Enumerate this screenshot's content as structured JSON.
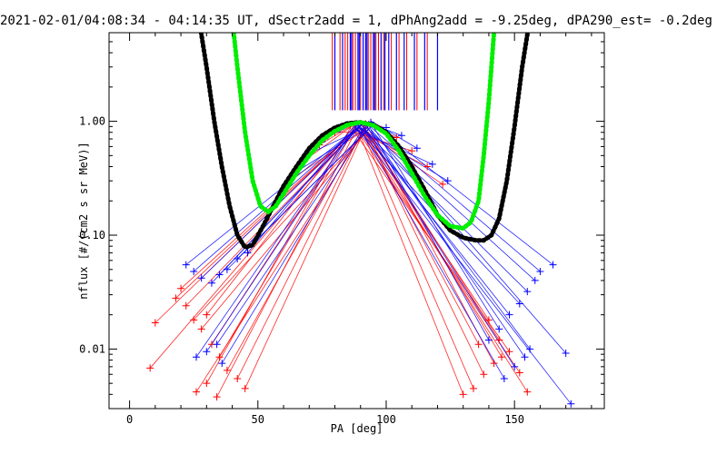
{
  "chart_data": {
    "type": "scatter",
    "title": "2021-02-01/04:08:34 - 04:14:35 UT, dSectr2add = 1, dPhAng2add = -9.25deg, dPA290_est=  -0.2deg",
    "xlabel": "PA [deg]",
    "ylabel": "nflux [#/(cm2 s sr MeV)]",
    "xlim": [
      -8,
      185
    ],
    "ylim": [
      0.003,
      6.0
    ],
    "yscale": "log",
    "xticks": [
      0,
      50,
      100,
      150
    ],
    "xtick_labels": [
      "0",
      "50",
      "100",
      "150"
    ],
    "yticks": [
      0.01,
      0.1,
      1.0
    ],
    "ytick_labels": [
      "0.01",
      "0.10",
      "1.00"
    ],
    "colors": {
      "red": "#ff0000",
      "blue": "#0000ff",
      "black": "#000000",
      "green": "#00ee00"
    },
    "series": [
      {
        "color": "#000000",
        "style": "thick-dotted-curve",
        "x": [
          27,
          30,
          33,
          36,
          39,
          42,
          45,
          48,
          52,
          56,
          60,
          65,
          70,
          75,
          80,
          85,
          90,
          95,
          100,
          105,
          110,
          115,
          120,
          125,
          130,
          135,
          138,
          141,
          144,
          147,
          150,
          153,
          156
        ],
        "y": [
          8.0,
          3.0,
          1.0,
          0.4,
          0.18,
          0.1,
          0.078,
          0.082,
          0.12,
          0.18,
          0.27,
          0.4,
          0.58,
          0.75,
          0.88,
          0.96,
          0.98,
          0.93,
          0.8,
          0.6,
          0.4,
          0.25,
          0.15,
          0.11,
          0.095,
          0.09,
          0.09,
          0.1,
          0.14,
          0.3,
          0.9,
          3.0,
          8.0
        ]
      },
      {
        "color": "#00ee00",
        "style": "thick-dotted-curve",
        "x": [
          40,
          42,
          45,
          48,
          51,
          54,
          57,
          60,
          65,
          70,
          75,
          80,
          85,
          90,
          95,
          100,
          105,
          110,
          115,
          120,
          125,
          130,
          133,
          136,
          138,
          140,
          142
        ],
        "y": [
          8.0,
          3.0,
          0.8,
          0.3,
          0.18,
          0.16,
          0.18,
          0.23,
          0.35,
          0.5,
          0.68,
          0.82,
          0.93,
          0.98,
          0.92,
          0.78,
          0.55,
          0.35,
          0.22,
          0.15,
          0.12,
          0.115,
          0.13,
          0.2,
          0.5,
          1.5,
          6.0
        ]
      }
    ],
    "scatter_red": {
      "color": "#ff0000",
      "x": [
        10,
        8,
        18,
        20,
        22,
        25,
        28,
        30,
        32,
        35,
        38,
        42,
        45,
        26,
        30,
        34,
        130,
        134,
        138,
        142,
        145,
        148,
        152,
        155,
        136,
        140,
        144,
        62,
        68,
        74,
        80,
        86,
        92,
        98,
        104,
        110,
        116,
        122
      ],
      "y": [
        0.017,
        0.0068,
        0.028,
        0.034,
        0.024,
        0.018,
        0.015,
        0.02,
        0.011,
        0.0085,
        0.0065,
        0.0055,
        0.0045,
        0.0042,
        0.005,
        0.0038,
        0.004,
        0.0045,
        0.006,
        0.0075,
        0.0085,
        0.0095,
        0.0062,
        0.0042,
        0.011,
        0.018,
        0.012,
        0.3,
        0.45,
        0.62,
        0.8,
        0.92,
        0.95,
        0.85,
        0.72,
        0.55,
        0.4,
        0.28
      ]
    },
    "scatter_blue": {
      "color": "#0000ff",
      "x": [
        22,
        25,
        28,
        32,
        35,
        38,
        42,
        46,
        26,
        30,
        34,
        36,
        140,
        144,
        148,
        152,
        155,
        158,
        160,
        165,
        170,
        172,
        146,
        150,
        154,
        156,
        64,
        70,
        76,
        82,
        88,
        94,
        100,
        106,
        112,
        118,
        124
      ],
      "y": [
        0.055,
        0.048,
        0.042,
        0.038,
        0.045,
        0.05,
        0.062,
        0.07,
        0.0085,
        0.0095,
        0.011,
        0.0075,
        0.012,
        0.015,
        0.02,
        0.025,
        0.032,
        0.04,
        0.048,
        0.055,
        0.0092,
        0.0033,
        0.0055,
        0.007,
        0.0085,
        0.01,
        0.35,
        0.52,
        0.7,
        0.85,
        0.95,
        0.98,
        0.88,
        0.75,
        0.58,
        0.42,
        0.3
      ]
    },
    "spikes": {
      "ymin": 1.25,
      "ymax": 6.0,
      "red_x": [
        79,
        82,
        85,
        88,
        90,
        93,
        96,
        99,
        102,
        105,
        108,
        112,
        116,
        84,
        87,
        91,
        94,
        97
      ],
      "blue_x": [
        80,
        83,
        86,
        89,
        91,
        92,
        95,
        98,
        101,
        104,
        107,
        111,
        115,
        120,
        86.5,
        89.5,
        92.5,
        95.5,
        99.5
      ]
    }
  }
}
